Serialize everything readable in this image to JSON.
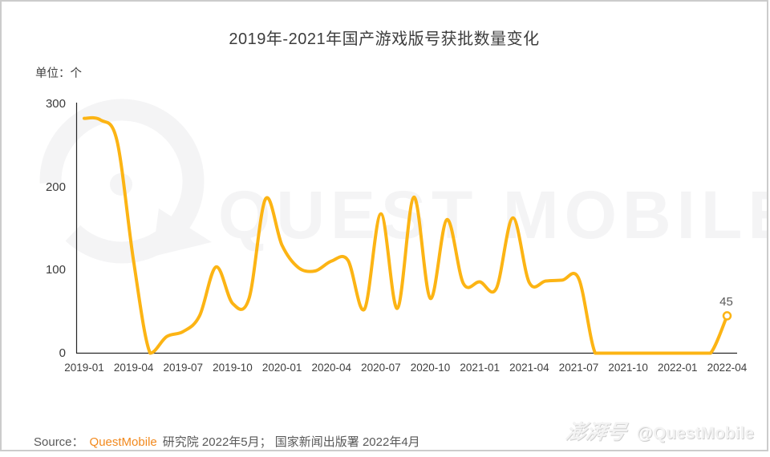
{
  "title": "2019年-2021年国产游戏版号获批数量变化",
  "unit_label": "单位：个",
  "watermark": {
    "logo": "questmobile-speech-bubble-logo",
    "text": "QUEST MOBILE"
  },
  "source": {
    "prefix": "Source：",
    "brand": "QuestMobile",
    "suffix": "研究院 2022年5月；  国家新闻出版署 2022年4月"
  },
  "footer_badge": {
    "platform": "澎湃号",
    "handle": "@QuestMobile"
  },
  "colors": {
    "line": "#fcb414",
    "axis": "#262626",
    "tick_text": "#3f3f3f",
    "title_text": "#3c3c3c",
    "source_text": "#595959",
    "brand_orange": "#f2891d",
    "watermark_gray": "#f4f4f5",
    "border_gray": "#cccccc",
    "end_label_gray": "#595959"
  },
  "chart_data": {
    "type": "line",
    "title": "2019年-2021年国产游戏版号获批数量变化",
    "unit": "个",
    "smooth": true,
    "grid": false,
    "legend": "none",
    "ylim": [
      0,
      300
    ],
    "yticks": [
      0,
      100,
      200,
      300
    ],
    "x": [
      "2019-01",
      "2019-02",
      "2019-03",
      "2019-04",
      "2019-05",
      "2019-06",
      "2019-07",
      "2019-08",
      "2019-09",
      "2019-10",
      "2019-11",
      "2019-12",
      "2020-01",
      "2020-02",
      "2020-03",
      "2020-04",
      "2020-05",
      "2020-06",
      "2020-07",
      "2020-08",
      "2020-09",
      "2020-10",
      "2020-11",
      "2020-12",
      "2021-01",
      "2021-02",
      "2021-03",
      "2021-04",
      "2021-05",
      "2021-06",
      "2021-07",
      "2021-08",
      "2021-09",
      "2021-10",
      "2021-11",
      "2021-12",
      "2022-01",
      "2022-02",
      "2022-03",
      "2022-04"
    ],
    "values": [
      283,
      281,
      255,
      110,
      0,
      20,
      26,
      45,
      104,
      60,
      66,
      186,
      130,
      103,
      99,
      111,
      112,
      53,
      168,
      54,
      188,
      66,
      161,
      84,
      86,
      78,
      163,
      85,
      87,
      88,
      90,
      0,
      0,
      0,
      0,
      0,
      0,
      0,
      0,
      45
    ],
    "xtick_labels": [
      "2019-01",
      "2019-04",
      "2019-07",
      "2019-10",
      "2020-01",
      "2020-04",
      "2020-07",
      "2020-10",
      "2021-01",
      "2021-04",
      "2021-07",
      "2021-10",
      "2022-01",
      "2022-04"
    ],
    "end_point_label": "45",
    "line_color": "#fcb414"
  }
}
